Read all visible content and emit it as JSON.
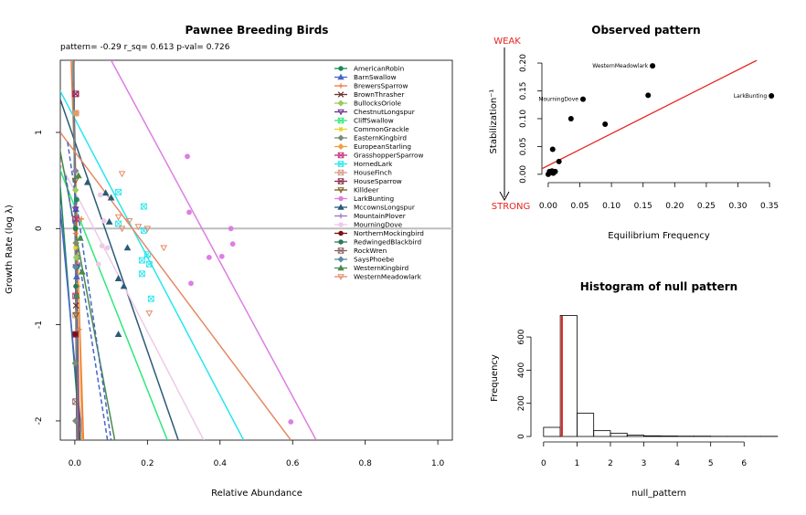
{
  "colors": {
    "AmericanRobin": "#1b8a5a",
    "BarnSwallow": "#4565c9",
    "BrewersSparrow": "#f07a3a",
    "BrownThrasher": "#6b3030",
    "BullocksOriole": "#99cc55",
    "ChestnutLongspur": "#6a2c8c",
    "CliffSwallow": "#2ee87a",
    "CommonGrackle": "#e8d020",
    "EasternKingbird": "#7a8c7a",
    "EuropeanStarling": "#f0a040",
    "GrasshopperSparrow": "#c2307a",
    "HornedLark": "#27e6ee",
    "HouseFinch": "#d89a88",
    "HouseSparrow": "#8c2a4a",
    "Killdeer": "#7a5a1a",
    "LarkBunting": "#dd7ee2",
    "MccownsLongspur": "#2a5a78",
    "MountainPlover": "#a070c0",
    "MourningDove": "#eecae8",
    "NorthernMockingbird": "#7a1010",
    "RedwingedBlackbird": "#2a7a5a",
    "RockWren": "#8a6060",
    "SaysPhoebe": "#5a8aa0",
    "WesternKingbird": "#4a8a4a",
    "WesternMeadowlark": "#e48a66",
    "red": "#e8231f",
    "refline": "#bdbdbd"
  },
  "chart_data": [
    {
      "type": "scatter",
      "title": "Pawnee Breeding Birds",
      "subtitle": "pattern= -0.29 r_sq= 0.613 p-val= 0.726",
      "xlabel": "Relative Abundance",
      "ylabel": "Growth Rate (log  λ)",
      "xlim": [
        -0.04,
        1.04
      ],
      "ylim": [
        -2.2,
        1.75
      ],
      "xticks": [
        "0.0",
        "0.2",
        "0.4",
        "0.6",
        "0.8",
        "1.0"
      ],
      "yticks": [
        "-2",
        "-1",
        "0",
        "1"
      ],
      "reference_line_y": 0,
      "legend_position": "top-right",
      "series": [
        {
          "name": "AmericanRobin",
          "key": "AmericanRobin",
          "marker": "circle",
          "line": [
            [
              -0.05,
              0.9
            ],
            [
              0.015,
              -2.2
            ]
          ],
          "points": [
            [
              0.005,
              0.3
            ],
            [
              0.006,
              -0.4
            ],
            [
              0.004,
              -0.7
            ]
          ]
        },
        {
          "name": "BarnSwallow",
          "key": "BarnSwallow",
          "marker": "triangle",
          "line": [
            [
              -0.05,
              0.6
            ],
            [
              0.02,
              -2.2
            ]
          ],
          "points": [
            [
              0.003,
              0.2
            ],
            [
              0.005,
              -0.5
            ]
          ]
        },
        {
          "name": "BrewersSparrow",
          "key": "BrewersSparrow",
          "marker": "plus",
          "line": [
            [
              -0.01,
              1.75
            ],
            [
              0.024,
              -2.2
            ]
          ],
          "points": [
            [
              0.005,
              -0.6
            ],
            [
              0.012,
              -1.05
            ],
            [
              0.018,
              0.1
            ],
            [
              0.002,
              -0.05
            ]
          ]
        },
        {
          "name": "BrownThrasher",
          "key": "BrownThrasher",
          "marker": "x",
          "line": [
            [
              -0.005,
              1.75
            ],
            [
              0.011,
              -2.2
            ]
          ],
          "points": [
            [
              0.002,
              -1.1
            ],
            [
              0.004,
              0.1
            ],
            [
              0.003,
              -0.8
            ]
          ]
        },
        {
          "name": "BullocksOriole",
          "key": "BullocksOriole",
          "marker": "diamond",
          "line": [
            [
              -0.005,
              1.75
            ],
            [
              0.009,
              -2.2
            ]
          ],
          "points": [
            [
              0.002,
              0.4
            ],
            [
              0.004,
              -0.3
            ]
          ]
        },
        {
          "name": "ChestnutLongspur",
          "key": "ChestnutLongspur",
          "marker": "triangle-down",
          "line": [
            [
              -0.004,
              1.75
            ],
            [
              0.008,
              -2.2
            ]
          ],
          "points": [
            [
              0.002,
              0.2
            ],
            [
              0.003,
              -0.4
            ]
          ]
        },
        {
          "name": "CliffSwallow",
          "key": "CliffSwallow",
          "marker": "square-x",
          "line": [
            [
              -0.05,
              0.7
            ],
            [
              0.255,
              -2.2
            ]
          ],
          "points": []
        },
        {
          "name": "CommonGrackle",
          "key": "CommonGrackle",
          "marker": "star",
          "line": [
            [
              -0.004,
              1.75
            ],
            [
              0.007,
              -2.2
            ]
          ],
          "points": [
            [
              0.002,
              -0.2
            ]
          ]
        },
        {
          "name": "EasternKingbird",
          "key": "EasternKingbird",
          "marker": "diamond",
          "line": [
            [
              -0.004,
              1.75
            ],
            [
              0.008,
              -2.2
            ]
          ],
          "points": [
            [
              0.001,
              -1.4
            ],
            [
              0.002,
              0.6
            ],
            [
              0.003,
              -0.15
            ],
            [
              0.002,
              -2.0
            ]
          ]
        },
        {
          "name": "EuropeanStarling",
          "key": "EuropeanStarling",
          "marker": "diamond",
          "line": [
            [
              -0.005,
              1.75
            ],
            [
              0.02,
              -2.2
            ]
          ],
          "points": [
            [
              0.004,
              1.2
            ],
            [
              0.007,
              -0.6
            ]
          ]
        },
        {
          "name": "GrasshopperSparrow",
          "key": "GrasshopperSparrow",
          "marker": "square-x",
          "line": [
            [
              -0.004,
              1.75
            ],
            [
              0.008,
              -2.2
            ]
          ],
          "points": [
            [
              0.002,
              -0.7
            ],
            [
              0.001,
              1.4
            ],
            [
              0.003,
              0.1
            ]
          ]
        },
        {
          "name": "HornedLark",
          "key": "HornedLark",
          "marker": "square-x",
          "line": [
            [
              -0.05,
              1.5
            ],
            [
              0.465,
              -2.2
            ]
          ],
          "points": [
            [
              0.12,
              0.38
            ],
            [
              0.19,
              0.23
            ],
            [
              0.12,
              0.05
            ],
            [
              0.19,
              -0.02
            ],
            [
              0.2,
              -0.27
            ],
            [
              0.185,
              -0.33
            ],
            [
              0.185,
              -0.47
            ],
            [
              0.205,
              -0.37
            ],
            [
              0.21,
              -0.73
            ]
          ]
        },
        {
          "name": "HouseFinch",
          "key": "HouseFinch",
          "marker": "square-x",
          "line": [
            [
              -0.004,
              1.75
            ],
            [
              0.01,
              -2.2
            ]
          ],
          "points": [
            [
              0.003,
              1.2
            ],
            [
              0.002,
              -0.9
            ]
          ]
        },
        {
          "name": "HouseSparrow",
          "key": "HouseSparrow",
          "marker": "square-x",
          "line": [
            [
              -0.004,
              1.75
            ],
            [
              0.012,
              -2.2
            ]
          ],
          "points": [
            [
              0.003,
              1.4
            ],
            [
              0.002,
              -1.1
            ]
          ]
        },
        {
          "name": "Killdeer",
          "key": "Killdeer",
          "marker": "triangle-down",
          "line": [
            [
              -0.004,
              1.75
            ],
            [
              0.009,
              -2.2
            ]
          ],
          "points": [
            [
              0.002,
              0.5
            ],
            [
              0.003,
              -0.9
            ]
          ]
        },
        {
          "name": "LarkBunting",
          "key": "LarkBunting",
          "marker": "circle",
          "line": [
            [
              0.1,
              1.75
            ],
            [
              0.665,
              -2.2
            ]
          ],
          "points": [
            [
              0.31,
              0.75
            ],
            [
              0.315,
              0.17
            ],
            [
              0.43,
              0.0
            ],
            [
              0.435,
              -0.16
            ],
            [
              0.37,
              -0.3
            ],
            [
              0.405,
              -0.29
            ],
            [
              0.32,
              -0.57
            ],
            [
              0.595,
              -2.01
            ]
          ]
        },
        {
          "name": "MccownsLongspur",
          "key": "MccownsLongspur",
          "marker": "triangle",
          "line": [
            [
              -0.05,
              1.45
            ],
            [
              0.285,
              -2.2
            ]
          ],
          "points": [
            [
              0.035,
              0.48
            ],
            [
              0.085,
              0.37
            ],
            [
              0.1,
              0.32
            ],
            [
              0.095,
              0.07
            ],
            [
              0.145,
              -0.2
            ],
            [
              0.12,
              -0.52
            ],
            [
              0.135,
              -0.6
            ],
            [
              0.12,
              -1.1
            ]
          ]
        },
        {
          "name": "MountainPlover",
          "key": "MountainPlover",
          "marker": "plus",
          "line": [
            [
              -0.004,
              1.75
            ],
            [
              0.009,
              -2.2
            ]
          ],
          "points": [
            [
              0.002,
              0.6
            ]
          ]
        },
        {
          "name": "MourningDove",
          "key": "MourningDove",
          "marker": "circle",
          "line": [
            [
              -0.05,
              0.75
            ],
            [
              0.355,
              -2.2
            ]
          ],
          "points": [
            [
              0.07,
              0.35
            ],
            [
              0.08,
              0.08
            ],
            [
              0.075,
              -0.18
            ],
            [
              0.09,
              -0.2
            ],
            [
              0.065,
              -0.37
            ]
          ]
        },
        {
          "name": "NorthernMockingbird",
          "key": "NorthernMockingbird",
          "marker": "circle",
          "line": [
            [
              -0.003,
              1.75
            ],
            [
              0.006,
              -2.2
            ]
          ],
          "points": [
            [
              0.001,
              -1.1
            ]
          ]
        },
        {
          "name": "RedwingedBlackbird",
          "key": "RedwingedBlackbird",
          "marker": "circle",
          "line": [
            [
              -0.004,
              1.75
            ],
            [
              0.008,
              -2.2
            ]
          ],
          "points": [
            [
              0.002,
              0.0
            ],
            [
              0.003,
              -0.6
            ]
          ]
        },
        {
          "name": "RockWren",
          "key": "RockWren",
          "marker": "square-x",
          "line": [
            [
              -0.004,
              1.75
            ],
            [
              0.008,
              -2.2
            ]
          ],
          "points": [
            [
              0.002,
              -1.8
            ]
          ]
        },
        {
          "name": "SaysPhoebe",
          "key": "SaysPhoebe",
          "marker": "diamond",
          "line": [
            [
              -0.004,
              1.75
            ],
            [
              0.008,
              -2.2
            ]
          ],
          "points": [
            [
              0.002,
              -0.4
            ]
          ]
        },
        {
          "name": "WesternKingbird",
          "key": "WesternKingbird",
          "marker": "triangle",
          "line": [
            [
              -0.05,
              1.0
            ],
            [
              0.11,
              -2.2
            ]
          ],
          "points": [
            [
              0.01,
              0.55
            ],
            [
              0.015,
              -0.1
            ],
            [
              0.02,
              -0.45
            ],
            [
              0.005,
              -0.7
            ]
          ]
        },
        {
          "name": "WesternMeadowlark",
          "key": "WesternMeadowlark",
          "marker": "triangle-down",
          "line": [
            [
              -0.04,
              1.0
            ],
            [
              0.595,
              -2.2
            ]
          ],
          "points": [
            [
              0.13,
              0.57
            ],
            [
              0.12,
              0.12
            ],
            [
              0.15,
              0.08
            ],
            [
              0.175,
              0.02
            ],
            [
              0.245,
              -0.2
            ],
            [
              0.205,
              -0.88
            ],
            [
              0.2,
              0.0
            ],
            [
              0.13,
              0.0
            ]
          ]
        }
      ],
      "dashed_lines": [
        {
          "key": "BarnSwallow",
          "line": [
            [
              -0.02,
              0.9
            ],
            [
              0.1,
              -2.2
            ]
          ]
        },
        {
          "key": "BarnSwallow",
          "line": [
            [
              -0.025,
              0.55
            ],
            [
              0.09,
              -2.2
            ]
          ]
        }
      ]
    },
    {
      "type": "scatter",
      "title": "Observed pattern",
      "xlabel": "Equilibrium Frequency",
      "ylabel": "Stabilization⁻¹",
      "xlim": [
        -0.01,
        0.36
      ],
      "ylim": [
        -0.015,
        0.205
      ],
      "xticks": [
        "0.00",
        "0.05",
        "0.10",
        "0.15",
        "0.20",
        "0.25",
        "0.30",
        "0.35"
      ],
      "yticks": [
        "0.00",
        "0.05",
        "0.10",
        "0.15",
        "0.20"
      ],
      "arrow_top_label": "WEAK",
      "arrow_bottom_label": "STRONG",
      "fit_line": [
        [
          -0.01,
          0.01
        ],
        [
          0.33,
          0.205
        ]
      ],
      "points": [
        [
          0.0,
          0.0
        ],
        [
          0.002,
          0.005
        ],
        [
          0.004,
          0.003
        ],
        [
          0.006,
          0.006
        ],
        [
          0.008,
          0.002
        ],
        [
          0.011,
          0.005
        ],
        [
          0.007,
          0.045
        ],
        [
          0.017,
          0.023
        ],
        [
          0.036,
          0.1
        ],
        [
          0.055,
          0.135
        ],
        [
          0.09,
          0.09
        ],
        [
          0.158,
          0.142
        ],
        [
          0.165,
          0.195
        ],
        [
          0.353,
          0.141
        ]
      ],
      "annotations": [
        {
          "text": "WesternMeadowlark",
          "x": 0.165,
          "y": 0.195
        },
        {
          "text": "MourningDove",
          "x": 0.055,
          "y": 0.135
        },
        {
          "text": "LarkBunting",
          "x": 0.353,
          "y": 0.141
        }
      ]
    },
    {
      "type": "bar",
      "title": "Histogram of null pattern",
      "xlabel": "null_pattern",
      "ylabel": "Frequency",
      "xlim": [
        -0.05,
        6.95
      ],
      "ylim": [
        0,
        760
      ],
      "xticks": [
        "0",
        "1",
        "2",
        "3",
        "4",
        "5",
        "6"
      ],
      "yticks": [
        "0",
        "200",
        "400",
        "600"
      ],
      "bins": [
        [
          0,
          0.5,
          55
        ],
        [
          0.5,
          1,
          730
        ],
        [
          1,
          1.5,
          140
        ],
        [
          1.5,
          2,
          35
        ],
        [
          2,
          2.5,
          20
        ],
        [
          2.5,
          3,
          8
        ],
        [
          3,
          3.5,
          4
        ],
        [
          3.5,
          4,
          3
        ],
        [
          4,
          4.5,
          2
        ],
        [
          4.5,
          5,
          2
        ],
        [
          5,
          5.5,
          1
        ],
        [
          5.5,
          6,
          1
        ],
        [
          6,
          6.5,
          1
        ],
        [
          6.5,
          7,
          1
        ]
      ],
      "observed_value": 0.55
    }
  ]
}
